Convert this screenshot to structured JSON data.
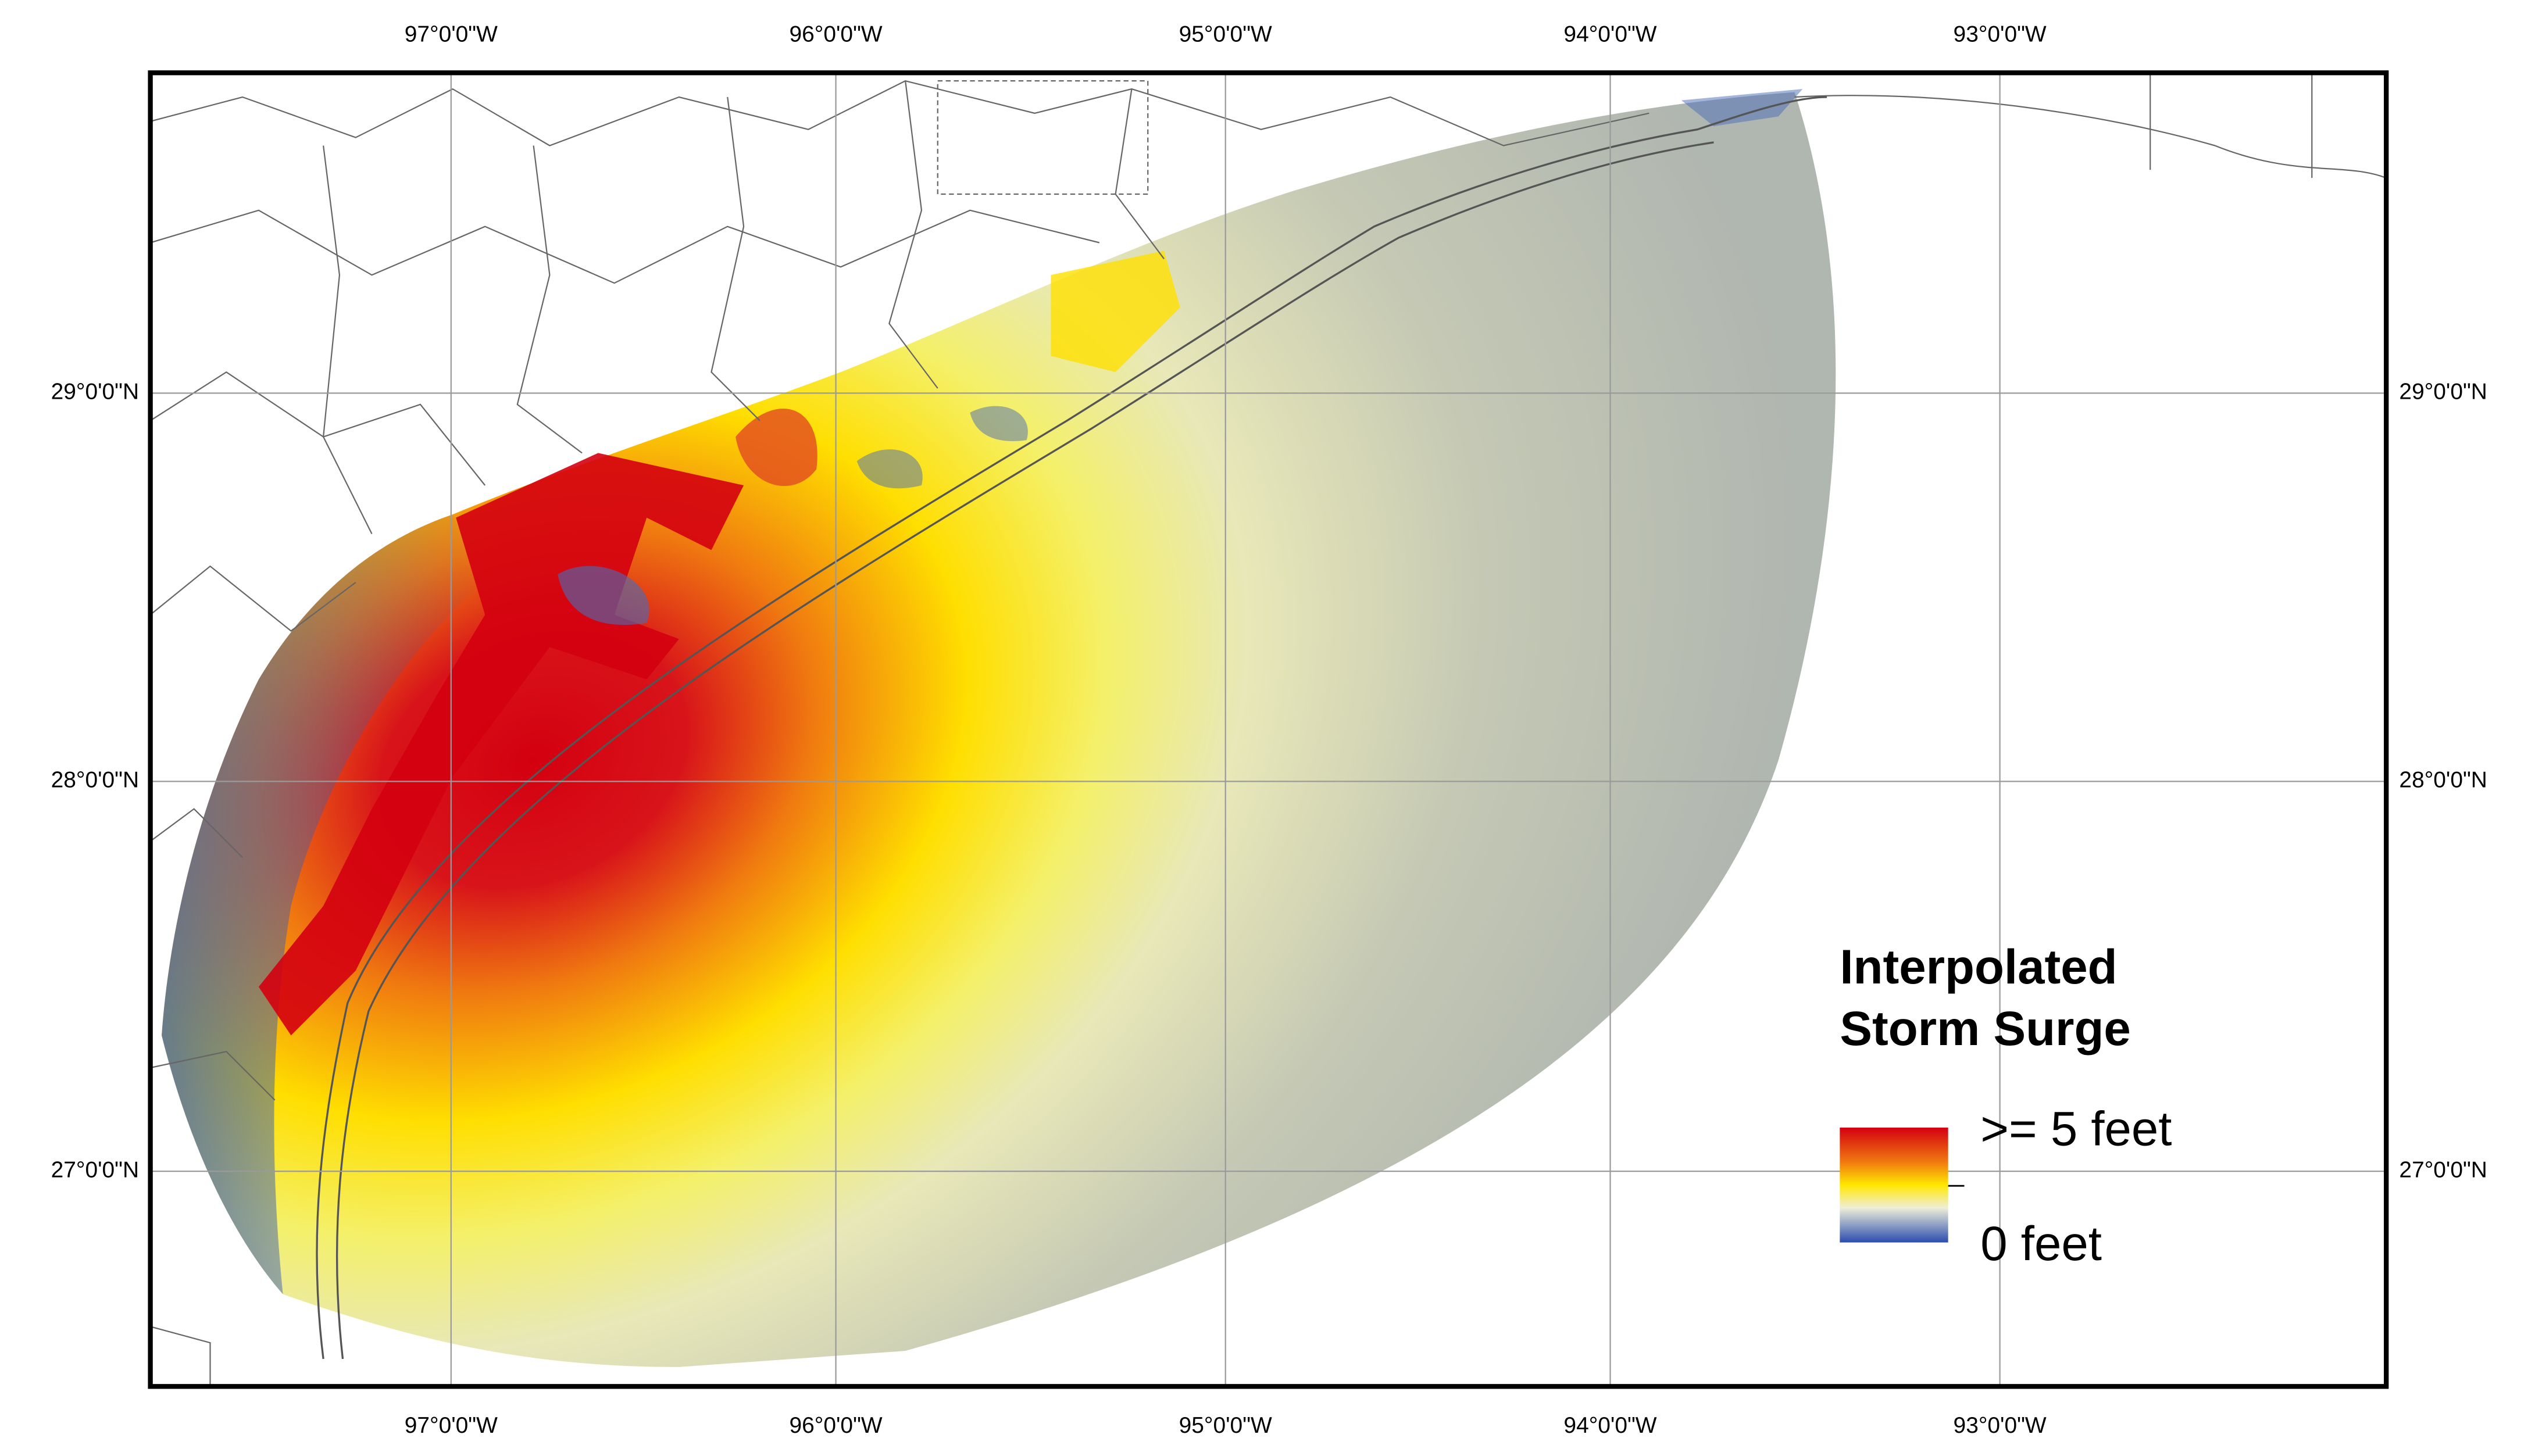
{
  "map": {
    "lon_labels": [
      "97°0'0\"W",
      "96°0'0\"W",
      "95°0'0\"W",
      "94°0'0\"W",
      "93°0'0\"W"
    ],
    "lat_labels": [
      "29°0'0\"N",
      "28°0'0\"N",
      "27°0'0\"N"
    ],
    "legend": {
      "title_line1": "Interpolated",
      "title_line2": "Storm Surge",
      "high": ">= 5 feet",
      "low": "0 feet"
    }
  }
}
